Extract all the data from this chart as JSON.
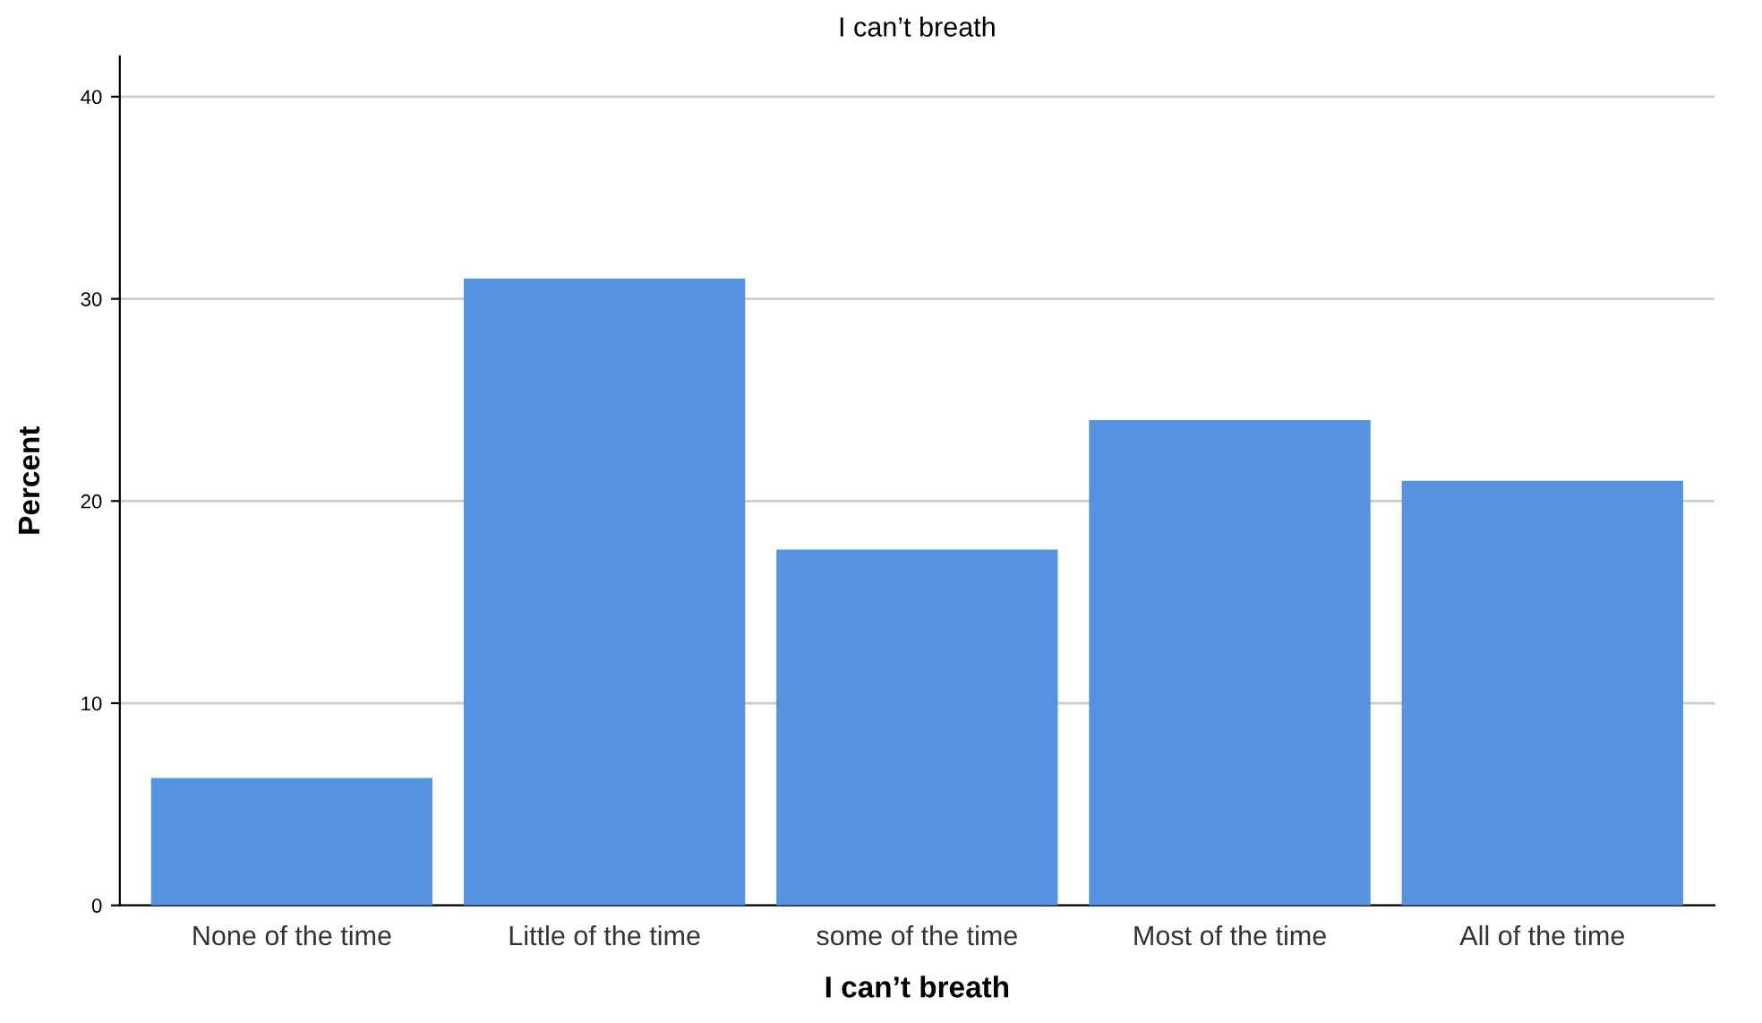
{
  "chart_data": {
    "type": "bar",
    "title": "I can’t breath",
    "xlabel": "I can’t breath",
    "ylabel": "Percent",
    "categories": [
      "None of the time",
      "Little of the time",
      "some of the time",
      "Most of the time",
      "All of the time"
    ],
    "values": [
      6.3,
      31.0,
      17.6,
      24.0,
      21.0
    ],
    "color": "#5593e0",
    "ylim": [
      0,
      42
    ],
    "yticks": [
      0,
      10,
      20,
      30,
      40
    ],
    "grid": "y"
  }
}
